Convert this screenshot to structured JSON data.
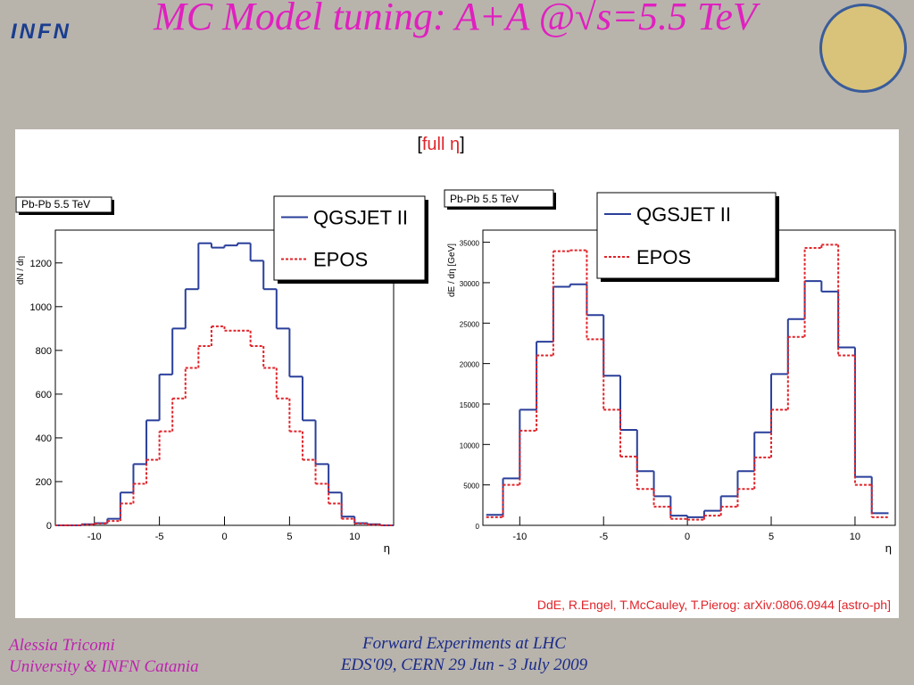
{
  "slide_title": "MC Model tuning: A+A @√s=5.5 TeV",
  "logo": "INFN",
  "panel_label": {
    "open": "[",
    "text": "full η",
    "close": "]"
  },
  "citation": "DdE, R.Engel, T.McCauley, T.Pierog: arXiv:0806.0944 [astro-ph]",
  "footer_left": [
    "Alessia Tricomi",
    "University & INFN Catania"
  ],
  "footer_center": [
    "Forward Experiments at LHC",
    "EDS'09, CERN 29 Jun - 3 July 2009"
  ],
  "chart_data": [
    {
      "type": "histogram",
      "annotation": "Pb-Pb 5.5 TeV",
      "x_label": "η",
      "y_label": "dN / dη",
      "legend": "top-right",
      "bins": [
        -13,
        -12,
        -11,
        -10,
        -9,
        -8,
        -7,
        -6,
        -5,
        -4,
        -3,
        -2,
        -1,
        0,
        1,
        2,
        3,
        4,
        5,
        6,
        7,
        8,
        9,
        10,
        11,
        12,
        13
      ],
      "series": [
        {
          "name": "QGSJET II",
          "color": "#2a3f9a",
          "style": "solid",
          "values": [
            0,
            0,
            5,
            10,
            30,
            150,
            280,
            480,
            690,
            900,
            1080,
            1290,
            1270,
            1280,
            1290,
            1210,
            1080,
            900,
            680,
            480,
            280,
            150,
            40,
            10,
            5,
            0
          ]
        },
        {
          "name": "EPOS",
          "color": "#e0242a",
          "style": "dotted",
          "values": [
            0,
            0,
            3,
            8,
            20,
            100,
            190,
            300,
            430,
            580,
            720,
            820,
            910,
            890,
            890,
            820,
            720,
            580,
            430,
            300,
            190,
            100,
            30,
            8,
            3,
            0
          ]
        }
      ],
      "xlim": [
        -13,
        13
      ],
      "ylim": [
        0,
        1350
      ],
      "xticks": [
        -10,
        -5,
        0,
        5,
        10
      ],
      "yticks": [
        0,
        200,
        400,
        600,
        800,
        1000,
        1200
      ]
    },
    {
      "type": "histogram",
      "annotation": "Pb-Pb 5.5 TeV",
      "x_label": "η",
      "y_label": "dE / dη  [GeV]",
      "legend": "top-right",
      "bins": [
        -12,
        -11,
        -10,
        -9,
        -8,
        -7,
        -6,
        -5,
        -4,
        -3,
        -2,
        -1,
        0,
        1,
        2,
        3,
        4,
        5,
        6,
        7,
        8,
        9,
        10,
        11,
        12
      ],
      "series": [
        {
          "name": "QGSJET II",
          "color": "#2a3f9a",
          "style": "solid",
          "values": [
            1300,
            5800,
            14300,
            22700,
            29500,
            29800,
            26000,
            18500,
            11800,
            6700,
            3600,
            1200,
            1000,
            1800,
            3600,
            6700,
            11500,
            18700,
            25500,
            30200,
            28900,
            22000,
            6000,
            1500
          ]
        },
        {
          "name": "EPOS",
          "color": "#e0242a",
          "style": "dotted",
          "values": [
            1000,
            5000,
            11700,
            21000,
            33900,
            34000,
            23000,
            14300,
            8500,
            4500,
            2300,
            800,
            700,
            1200,
            2300,
            4500,
            8400,
            14300,
            23300,
            34300,
            34700,
            21000,
            5000,
            1000
          ]
        }
      ],
      "xlim": [
        -12.2,
        12.4
      ],
      "ylim": [
        0,
        36500
      ],
      "xticks": [
        -10,
        -5,
        0,
        5,
        10
      ],
      "yticks": [
        0,
        5000,
        10000,
        15000,
        20000,
        25000,
        30000,
        35000
      ]
    }
  ]
}
